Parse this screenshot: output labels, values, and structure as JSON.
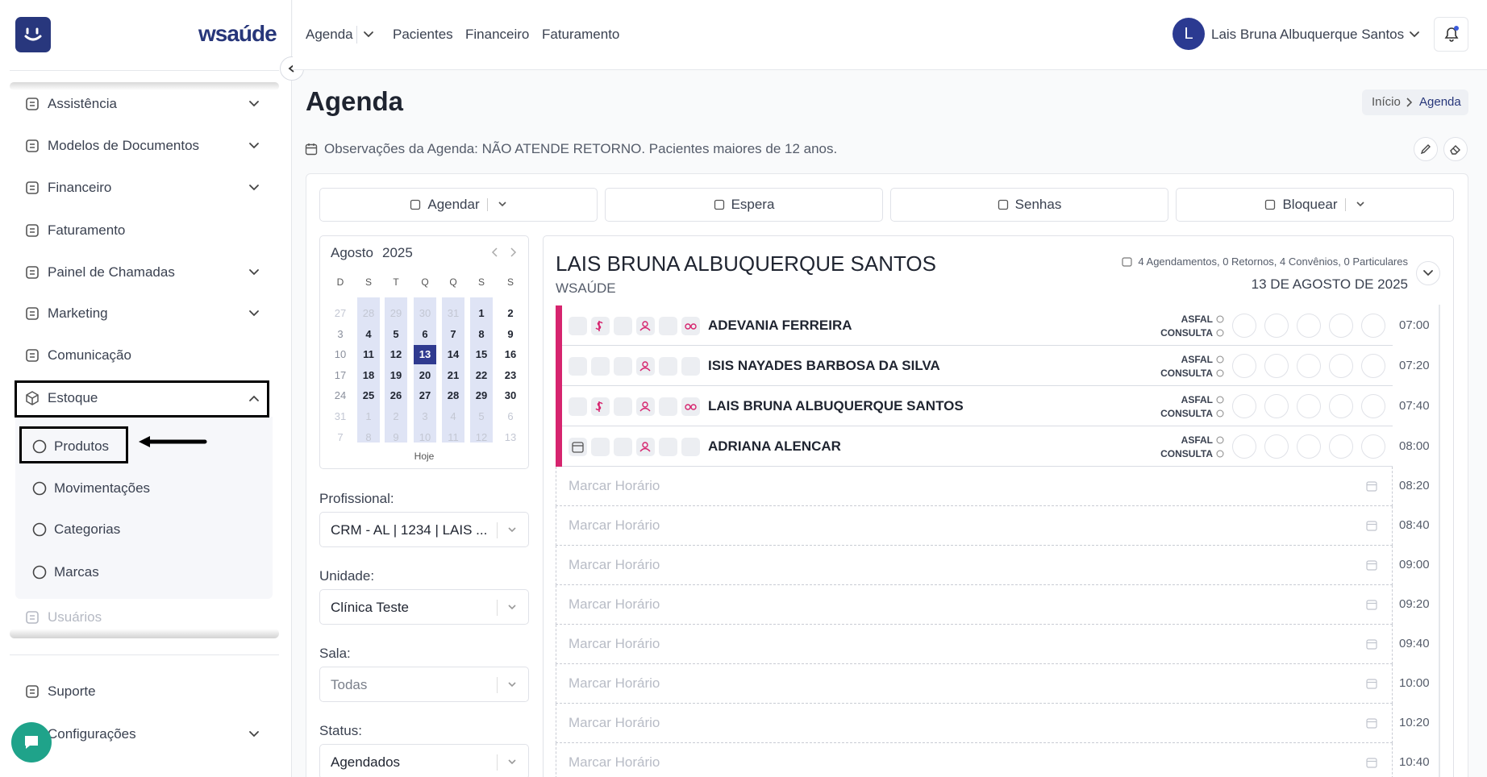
{
  "sidebar": {
    "brand": "wsaúde",
    "menu": [
      {
        "label": "Assistência",
        "expandable": true
      },
      {
        "label": "Modelos de Documentos",
        "expandable": true
      },
      {
        "label": "Financeiro",
        "expandable": true
      },
      {
        "label": "Faturamento",
        "expandable": false
      },
      {
        "label": "Painel de Chamadas",
        "expandable": true
      },
      {
        "label": "Marketing",
        "expandable": true
      },
      {
        "label": "Comunicação",
        "expandable": false
      }
    ],
    "open_group": {
      "label": "Estoque",
      "items": [
        "Produtos",
        "Movimentações",
        "Categorias",
        "Marcas"
      ]
    },
    "faded_item": "Usuários",
    "footer": [
      {
        "label": "Suporte",
        "expandable": false
      },
      {
        "label": "Configurações",
        "expandable": true
      }
    ]
  },
  "topnav": {
    "links": [
      "Agenda",
      "Pacientes",
      "Financeiro",
      "Faturamento"
    ],
    "user_initial": "L",
    "user_name": "Lais Bruna Albuquerque Santos"
  },
  "page": {
    "title": "Agenda",
    "breadcrumb": [
      "Início",
      "Agenda"
    ],
    "observations": "Observações da Agenda: NÃO ATENDE RETORNO. Pacientes maiores de 12 anos."
  },
  "actions": [
    "Agendar",
    "Espera",
    "Senhas",
    "Bloquear"
  ],
  "calendar": {
    "month": "Agosto",
    "year": "2025",
    "weekdays": [
      "D",
      "S",
      "T",
      "Q",
      "Q",
      "S",
      "S"
    ],
    "weeks": [
      [
        27,
        28,
        29,
        30,
        31,
        1,
        2
      ],
      [
        3,
        4,
        5,
        6,
        7,
        8,
        9
      ],
      [
        10,
        11,
        12,
        13,
        14,
        15,
        16
      ],
      [
        17,
        18,
        19,
        20,
        21,
        22,
        23
      ],
      [
        24,
        25,
        26,
        27,
        28,
        29,
        30
      ],
      [
        31,
        1,
        2,
        3,
        4,
        5,
        6
      ],
      [
        7,
        8,
        9,
        10,
        11,
        12,
        13
      ]
    ],
    "selected_day": 13,
    "today": "Hoje"
  },
  "filters": [
    {
      "label": "Profissional:",
      "value": "CRM - AL | 1234 | LAIS ..."
    },
    {
      "label": "Unidade:",
      "value": "Clínica Teste"
    },
    {
      "label": "Sala:",
      "value": "Todas"
    },
    {
      "label": "Status:",
      "value": "Agendados"
    }
  ],
  "schedule": {
    "professional": "LAIS BRUNA ALBUQUERQUE SANTOS",
    "clinic": "WSAÚDE",
    "summary": "4 Agendamentos, 0 Retornos, 4 Convênios, 0 Particulares",
    "date": "13 DE AGOSTO DE 2025",
    "appointments": [
      {
        "patient": "ADEVANIA FERREIRA",
        "insurance": "ASFAL",
        "kind": "CONSULTA",
        "time": "07:00"
      },
      {
        "patient": "ISIS NAYADES BARBOSA DA SILVA",
        "insurance": "ASFAL",
        "kind": "CONSULTA",
        "time": "07:20"
      },
      {
        "patient": "LAIS BRUNA ALBUQUERQUE SANTOS",
        "insurance": "ASFAL",
        "kind": "CONSULTA",
        "time": "07:40"
      },
      {
        "patient": "ADRIANA ALENCAR",
        "insurance": "ASFAL",
        "kind": "CONSULTA",
        "time": "08:00"
      }
    ],
    "free_slots": [
      {
        "label": "Marcar Horário",
        "time": "08:20"
      },
      {
        "label": "Marcar Horário",
        "time": "08:40"
      },
      {
        "label": "Marcar Horário",
        "time": "09:00"
      },
      {
        "label": "Marcar Horário",
        "time": "09:20"
      },
      {
        "label": "Marcar Horário",
        "time": "09:40"
      },
      {
        "label": "Marcar Horário",
        "time": "10:00"
      },
      {
        "label": "Marcar Horário",
        "time": "10:20"
      },
      {
        "label": "Marcar Horário",
        "time": "10:40"
      }
    ]
  }
}
